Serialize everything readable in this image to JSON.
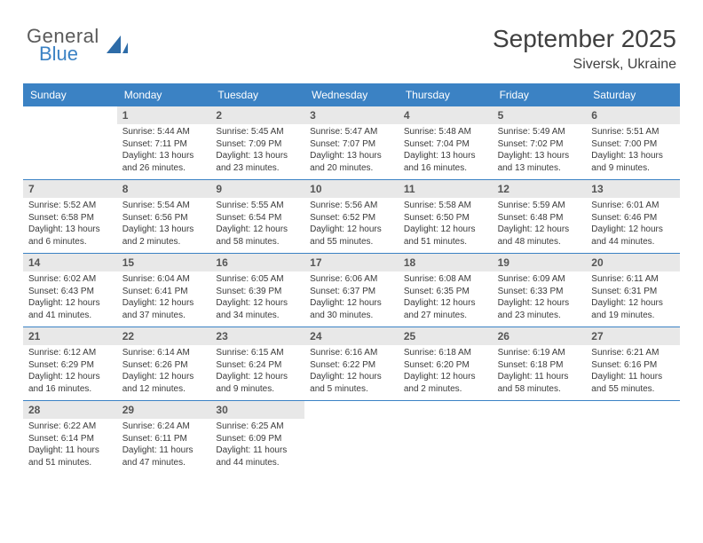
{
  "brand": {
    "text1": "General",
    "text2": "Blue"
  },
  "title": "September 2025",
  "location": "Siversk, Ukraine",
  "day_names": [
    "Sunday",
    "Monday",
    "Tuesday",
    "Wednesday",
    "Thursday",
    "Friday",
    "Saturday"
  ],
  "colors": {
    "header_bg": "#3b82c4",
    "header_text": "#ffffff",
    "daynum_bg": "#e8e8e8",
    "text": "#3a3a3a",
    "rule": "#3b82c4"
  },
  "weeks": [
    [
      {
        "empty": true
      },
      {
        "n": "1",
        "sunrise": "5:44 AM",
        "sunset": "7:11 PM",
        "daylight": "13 hours and 26 minutes."
      },
      {
        "n": "2",
        "sunrise": "5:45 AM",
        "sunset": "7:09 PM",
        "daylight": "13 hours and 23 minutes."
      },
      {
        "n": "3",
        "sunrise": "5:47 AM",
        "sunset": "7:07 PM",
        "daylight": "13 hours and 20 minutes."
      },
      {
        "n": "4",
        "sunrise": "5:48 AM",
        "sunset": "7:04 PM",
        "daylight": "13 hours and 16 minutes."
      },
      {
        "n": "5",
        "sunrise": "5:49 AM",
        "sunset": "7:02 PM",
        "daylight": "13 hours and 13 minutes."
      },
      {
        "n": "6",
        "sunrise": "5:51 AM",
        "sunset": "7:00 PM",
        "daylight": "13 hours and 9 minutes."
      }
    ],
    [
      {
        "n": "7",
        "sunrise": "5:52 AM",
        "sunset": "6:58 PM",
        "daylight": "13 hours and 6 minutes."
      },
      {
        "n": "8",
        "sunrise": "5:54 AM",
        "sunset": "6:56 PM",
        "daylight": "13 hours and 2 minutes."
      },
      {
        "n": "9",
        "sunrise": "5:55 AM",
        "sunset": "6:54 PM",
        "daylight": "12 hours and 58 minutes."
      },
      {
        "n": "10",
        "sunrise": "5:56 AM",
        "sunset": "6:52 PM",
        "daylight": "12 hours and 55 minutes."
      },
      {
        "n": "11",
        "sunrise": "5:58 AM",
        "sunset": "6:50 PM",
        "daylight": "12 hours and 51 minutes."
      },
      {
        "n": "12",
        "sunrise": "5:59 AM",
        "sunset": "6:48 PM",
        "daylight": "12 hours and 48 minutes."
      },
      {
        "n": "13",
        "sunrise": "6:01 AM",
        "sunset": "6:46 PM",
        "daylight": "12 hours and 44 minutes."
      }
    ],
    [
      {
        "n": "14",
        "sunrise": "6:02 AM",
        "sunset": "6:43 PM",
        "daylight": "12 hours and 41 minutes."
      },
      {
        "n": "15",
        "sunrise": "6:04 AM",
        "sunset": "6:41 PM",
        "daylight": "12 hours and 37 minutes."
      },
      {
        "n": "16",
        "sunrise": "6:05 AM",
        "sunset": "6:39 PM",
        "daylight": "12 hours and 34 minutes."
      },
      {
        "n": "17",
        "sunrise": "6:06 AM",
        "sunset": "6:37 PM",
        "daylight": "12 hours and 30 minutes."
      },
      {
        "n": "18",
        "sunrise": "6:08 AM",
        "sunset": "6:35 PM",
        "daylight": "12 hours and 27 minutes."
      },
      {
        "n": "19",
        "sunrise": "6:09 AM",
        "sunset": "6:33 PM",
        "daylight": "12 hours and 23 minutes."
      },
      {
        "n": "20",
        "sunrise": "6:11 AM",
        "sunset": "6:31 PM",
        "daylight": "12 hours and 19 minutes."
      }
    ],
    [
      {
        "n": "21",
        "sunrise": "6:12 AM",
        "sunset": "6:29 PM",
        "daylight": "12 hours and 16 minutes."
      },
      {
        "n": "22",
        "sunrise": "6:14 AM",
        "sunset": "6:26 PM",
        "daylight": "12 hours and 12 minutes."
      },
      {
        "n": "23",
        "sunrise": "6:15 AM",
        "sunset": "6:24 PM",
        "daylight": "12 hours and 9 minutes."
      },
      {
        "n": "24",
        "sunrise": "6:16 AM",
        "sunset": "6:22 PM",
        "daylight": "12 hours and 5 minutes."
      },
      {
        "n": "25",
        "sunrise": "6:18 AM",
        "sunset": "6:20 PM",
        "daylight": "12 hours and 2 minutes."
      },
      {
        "n": "26",
        "sunrise": "6:19 AM",
        "sunset": "6:18 PM",
        "daylight": "11 hours and 58 minutes."
      },
      {
        "n": "27",
        "sunrise": "6:21 AM",
        "sunset": "6:16 PM",
        "daylight": "11 hours and 55 minutes."
      }
    ],
    [
      {
        "n": "28",
        "sunrise": "6:22 AM",
        "sunset": "6:14 PM",
        "daylight": "11 hours and 51 minutes."
      },
      {
        "n": "29",
        "sunrise": "6:24 AM",
        "sunset": "6:11 PM",
        "daylight": "11 hours and 47 minutes."
      },
      {
        "n": "30",
        "sunrise": "6:25 AM",
        "sunset": "6:09 PM",
        "daylight": "11 hours and 44 minutes."
      },
      {
        "empty": true
      },
      {
        "empty": true
      },
      {
        "empty": true
      },
      {
        "empty": true
      }
    ]
  ],
  "labels": {
    "sunrise": "Sunrise:",
    "sunset": "Sunset:",
    "daylight": "Daylight:"
  }
}
